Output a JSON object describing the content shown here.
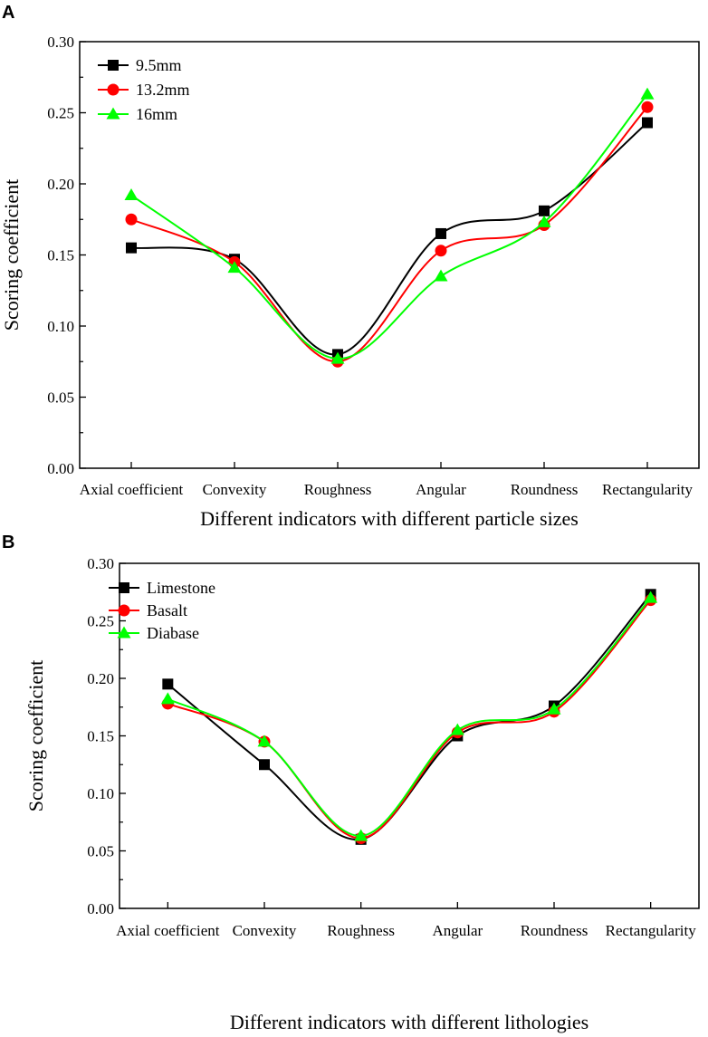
{
  "chart_data": [
    {
      "type": "line",
      "panel_label": "A",
      "categories": [
        "Axial coefficient",
        "Convexity",
        "Roughness",
        "Angular",
        "Roundness",
        "Rectangularity"
      ],
      "series": [
        {
          "name": "9.5mm",
          "color": "#000000",
          "marker": "square",
          "values": [
            0.155,
            0.147,
            0.08,
            0.165,
            0.181,
            0.243
          ]
        },
        {
          "name": "13.2mm",
          "color": "#ff0000",
          "marker": "circle",
          "values": [
            0.175,
            0.145,
            0.075,
            0.153,
            0.171,
            0.254
          ]
        },
        {
          "name": "16mm",
          "color": "#00ff00",
          "marker": "triangle",
          "values": [
            0.192,
            0.141,
            0.077,
            0.135,
            0.173,
            0.263
          ]
        }
      ],
      "ylim": [
        0.0,
        0.3
      ],
      "yticks": [
        "0.00",
        "0.05",
        "0.10",
        "0.15",
        "0.20",
        "0.25",
        "0.30"
      ],
      "xlabel": "Different indicators with different particle sizes",
      "ylabel": "Scoring coefficient",
      "legend_position": "top-left"
    },
    {
      "type": "line",
      "panel_label": "B",
      "categories": [
        "Axial coefficient",
        "Convexity",
        "Roughness",
        "Angular",
        "Roundness",
        "Rectangularity"
      ],
      "series": [
        {
          "name": "Limestone",
          "color": "#000000",
          "marker": "square",
          "values": [
            0.195,
            0.125,
            0.06,
            0.15,
            0.176,
            0.273
          ]
        },
        {
          "name": "Basalt",
          "color": "#ff0000",
          "marker": "circle",
          "values": [
            0.178,
            0.145,
            0.061,
            0.153,
            0.171,
            0.268
          ]
        },
        {
          "name": "Diabase",
          "color": "#00ff00",
          "marker": "triangle",
          "values": [
            0.182,
            0.145,
            0.063,
            0.155,
            0.173,
            0.27
          ]
        }
      ],
      "ylim": [
        0.0,
        0.3
      ],
      "yticks": [
        "0.00",
        "0.05",
        "0.10",
        "0.15",
        "0.20",
        "0.25",
        "0.30"
      ],
      "xlabel": "Different indicators with different lithologies",
      "ylabel": "Scoring coefficient",
      "legend_position": "top-left"
    }
  ]
}
